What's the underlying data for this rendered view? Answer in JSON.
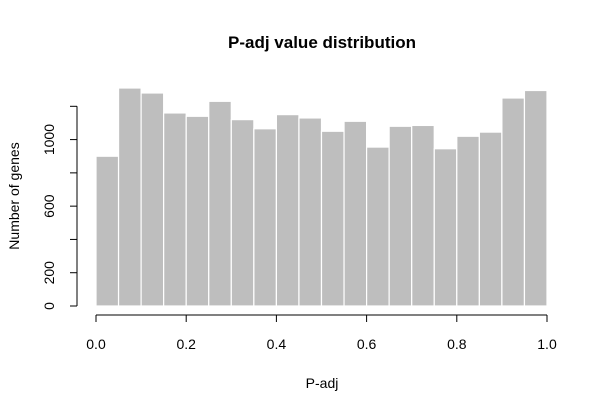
{
  "chart_data": {
    "type": "bar",
    "title": "P-adj value distribution",
    "xlabel": "P-adj",
    "ylabel": "Number of genes",
    "bin_edges": [
      0.0,
      0.05,
      0.1,
      0.15,
      0.2,
      0.25,
      0.3,
      0.35,
      0.4,
      0.45,
      0.5,
      0.55,
      0.6,
      0.65,
      0.7,
      0.75,
      0.8,
      0.85,
      0.9,
      0.95,
      1.0
    ],
    "values": [
      900,
      1310,
      1280,
      1160,
      1140,
      1230,
      1120,
      1065,
      1150,
      1130,
      1050,
      1110,
      955,
      1080,
      1085,
      945,
      1020,
      1045,
      1250,
      1295
    ],
    "xlim": [
      0,
      1
    ],
    "ylim": [
      0,
      1310
    ],
    "x_ticks": [
      0.0,
      0.2,
      0.4,
      0.6,
      0.8,
      1.0
    ],
    "x_tick_labels": [
      "0.0",
      "0.2",
      "0.4",
      "0.6",
      "0.8",
      "1.0"
    ],
    "y_ticks": [
      0,
      200,
      400,
      600,
      800,
      1000,
      1200
    ],
    "y_tick_labels": [
      "0",
      "200",
      "",
      "600",
      "",
      "1000",
      ""
    ],
    "bar_color": "#bebebe",
    "grid": false
  }
}
